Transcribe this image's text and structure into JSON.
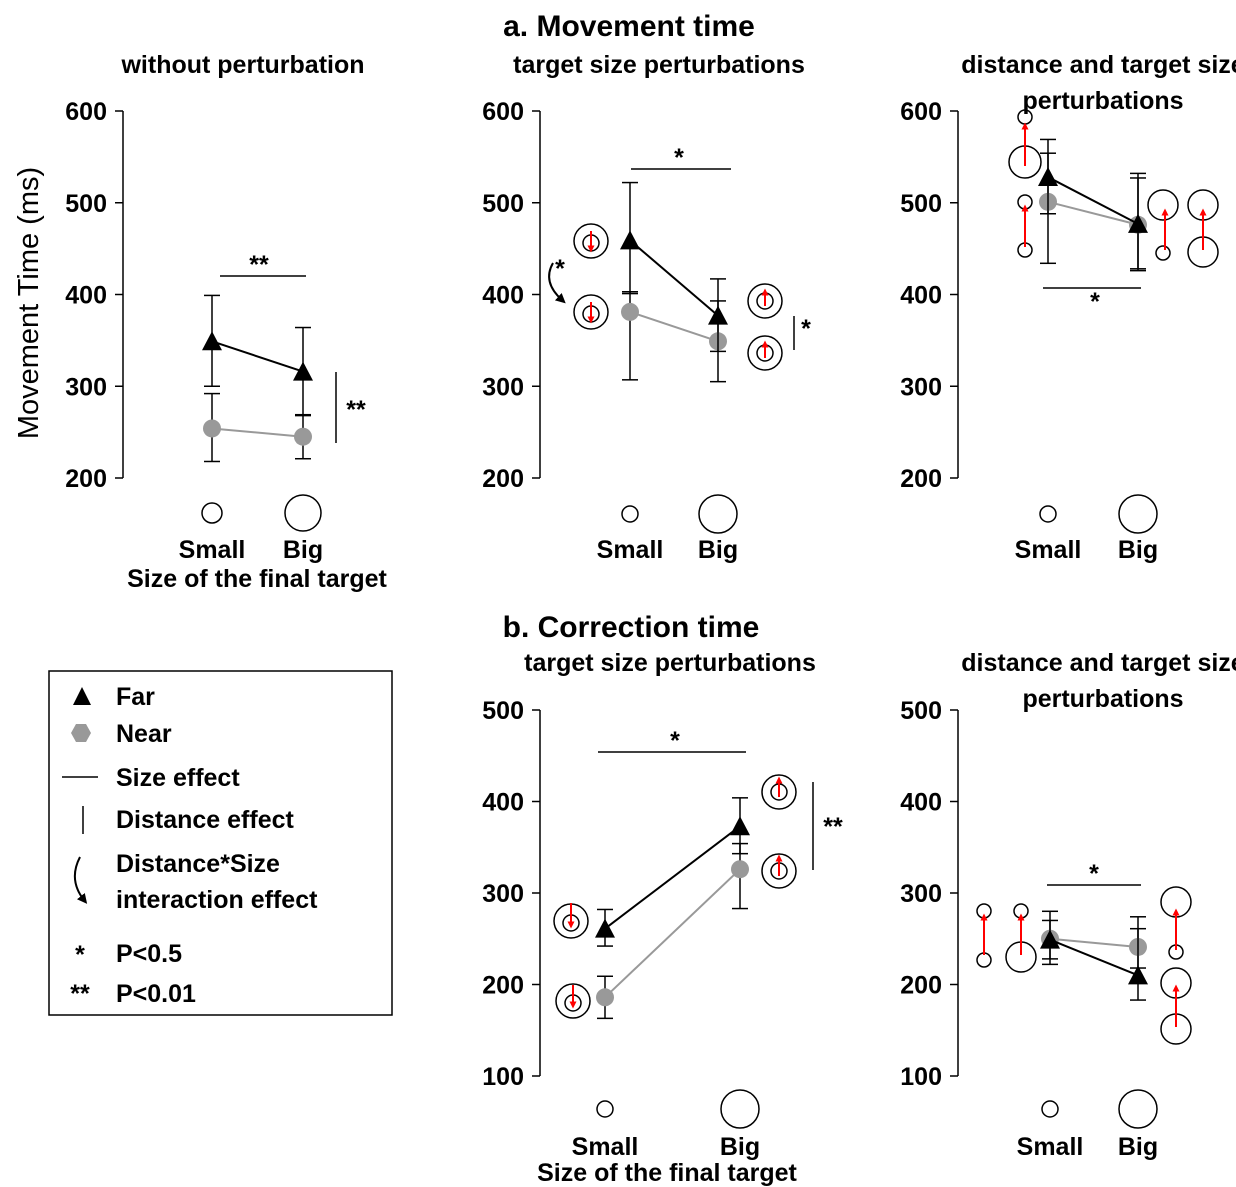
{
  "figure": {
    "section_a_title": "a. Movement time",
    "section_b_title": "b. Correction time",
    "ylabel": "Movement Time (ms)",
    "xlabel": "Size of the final target",
    "colors": {
      "far": "#000000",
      "near": "#999999",
      "arrow": "#ff0000"
    }
  },
  "legend": {
    "items": [
      {
        "symbol": "black-triangle",
        "label": "Far"
      },
      {
        "symbol": "grey-hexagon",
        "label": "Near"
      },
      {
        "symbol": "horizontal-line",
        "label": "Size effect"
      },
      {
        "symbol": "vertical-line",
        "label": "Distance effect"
      },
      {
        "symbol": "curved-arrow",
        "label": "Distance*Size interaction effect",
        "lines": [
          "Distance*Size",
          "interaction effect"
        ]
      },
      {
        "symbol": "*",
        "label": "P<0.5"
      },
      {
        "symbol": "**",
        "label": "P<0.01"
      }
    ]
  },
  "chart_data": [
    {
      "type": "line",
      "title": "without perturbation",
      "section": "a",
      "categories": [
        "Small",
        "Big"
      ],
      "ylim": [
        200,
        600
      ],
      "yticks": [
        200,
        300,
        400,
        500,
        600
      ],
      "ylabel": "Movement Time (ms)",
      "xlabel": "Size of the final target",
      "series": [
        {
          "name": "Far",
          "values": [
            349,
            316
          ],
          "lower": [
            300,
            268
          ],
          "upper": [
            399,
            364
          ]
        },
        {
          "name": "Near",
          "values": [
            254,
            245
          ],
          "lower": [
            218,
            221
          ],
          "upper": [
            292,
            269
          ]
        }
      ],
      "annotations": [
        {
          "kind": "size-effect",
          "text": "**"
        },
        {
          "kind": "distance-effect",
          "text": "**"
        }
      ]
    },
    {
      "type": "line",
      "title": "target size perturbations",
      "section": "a",
      "categories": [
        "Small",
        "Big"
      ],
      "ylim": [
        200,
        600
      ],
      "yticks": [
        200,
        300,
        400,
        500,
        600
      ],
      "series": [
        {
          "name": "Far",
          "values": [
            459,
            377
          ],
          "lower": [
            401,
            338
          ],
          "upper": [
            522,
            417
          ]
        },
        {
          "name": "Near",
          "values": [
            381,
            349
          ],
          "lower": [
            307,
            305
          ],
          "upper": [
            403,
            393
          ]
        }
      ],
      "annotations": [
        {
          "kind": "size-effect",
          "text": "*"
        },
        {
          "kind": "interaction-effect",
          "text": "*"
        },
        {
          "kind": "distance-effect",
          "text": "*"
        }
      ]
    },
    {
      "type": "line",
      "title": "distance and target size perturbations",
      "section": "a",
      "categories": [
        "Small",
        "Big"
      ],
      "ylim": [
        200,
        600
      ],
      "yticks": [
        200,
        300,
        400,
        500,
        600
      ],
      "series": [
        {
          "name": "Far",
          "values": [
            528,
            477
          ],
          "lower": [
            488,
            428
          ],
          "upper": [
            569,
            527
          ]
        },
        {
          "name": "Near",
          "values": [
            501,
            476
          ],
          "lower": [
            434,
            426
          ],
          "upper": [
            554,
            532
          ]
        }
      ],
      "annotations": [
        {
          "kind": "size-effect",
          "text": "*"
        }
      ]
    },
    {
      "type": "line",
      "title": "target size perturbations",
      "section": "b",
      "categories": [
        "Small",
        "Big"
      ],
      "ylim": [
        100,
        500
      ],
      "yticks": [
        100,
        200,
        300,
        400,
        500
      ],
      "xlabel": "Size of the final target",
      "series": [
        {
          "name": "Far",
          "values": [
            261,
            373
          ],
          "lower": [
            242,
            343
          ],
          "upper": [
            282,
            404
          ]
        },
        {
          "name": "Near",
          "values": [
            186,
            326
          ],
          "lower": [
            163,
            283
          ],
          "upper": [
            209,
            354
          ]
        }
      ],
      "annotations": [
        {
          "kind": "size-effect",
          "text": "*"
        },
        {
          "kind": "distance-effect",
          "text": "**"
        }
      ]
    },
    {
      "type": "line",
      "title": "distance and target size perturbations",
      "section": "b",
      "categories": [
        "Small",
        "Big"
      ],
      "ylim": [
        100,
        500
      ],
      "yticks": [
        100,
        200,
        300,
        400,
        500
      ],
      "series": [
        {
          "name": "Far",
          "values": [
            249,
            210
          ],
          "lower": [
            222,
            183
          ],
          "upper": [
            280,
            274
          ]
        },
        {
          "name": "Near",
          "values": [
            250,
            241
          ],
          "lower": [
            228,
            218
          ],
          "upper": [
            270,
            261
          ]
        }
      ],
      "annotations": [
        {
          "kind": "size-effect",
          "text": "*"
        }
      ]
    }
  ]
}
